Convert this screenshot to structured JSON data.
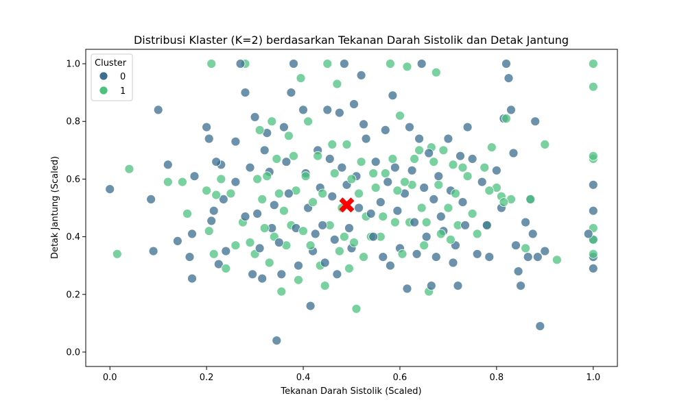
{
  "chart_data": {
    "type": "scatter",
    "title": "Distribusi Klaster (K=2) berdasarkan Tekanan Darah Sistolik dan Detak Jantung",
    "xlabel": "Tekanan Darah Sistolik (Scaled)",
    "ylabel": "Detak Jantung (Scaled)",
    "xlim": [
      -0.05,
      1.05
    ],
    "ylim": [
      -0.05,
      1.05
    ],
    "xticks": [
      "0.0",
      "0.2",
      "0.4",
      "0.6",
      "0.8",
      "1.0"
    ],
    "yticks": [
      "0.0",
      "0.2",
      "0.4",
      "0.6",
      "0.8",
      "1.0"
    ],
    "grid": false,
    "legend": {
      "title": "Cluster",
      "placement": "top-left",
      "entries": [
        "0",
        "1"
      ]
    },
    "colors": {
      "cluster_0": "#3b6e8f",
      "cluster_1": "#4cc27f",
      "centroid": "#ff0000"
    },
    "centroid": {
      "x": 0.49,
      "y": 0.51,
      "marker": "X"
    },
    "series": [
      {
        "name": "0",
        "points": [
          [
            0.0,
            0.565
          ],
          [
            0.085,
            0.53
          ],
          [
            0.09,
            0.35
          ],
          [
            0.1,
            0.84
          ],
          [
            0.12,
            0.65
          ],
          [
            0.14,
            0.385
          ],
          [
            0.165,
            0.33
          ],
          [
            0.17,
            0.255
          ],
          [
            0.17,
            0.41
          ],
          [
            0.175,
            0.61
          ],
          [
            0.2,
            0.78
          ],
          [
            0.205,
            0.74
          ],
          [
            0.21,
            0.455
          ],
          [
            0.215,
            0.49
          ],
          [
            0.22,
            0.66
          ],
          [
            0.225,
            0.305
          ],
          [
            0.23,
            0.65
          ],
          [
            0.235,
            0.53
          ],
          [
            0.24,
            0.35
          ],
          [
            0.26,
            0.59
          ],
          [
            0.26,
            0.73
          ],
          [
            0.27,
            1.0
          ],
          [
            0.28,
            0.47
          ],
          [
            0.28,
            0.9
          ],
          [
            0.29,
            0.64
          ],
          [
            0.295,
            0.27
          ],
          [
            0.3,
            0.815
          ],
          [
            0.305,
            0.48
          ],
          [
            0.31,
            0.36
          ],
          [
            0.315,
            0.255
          ],
          [
            0.32,
            0.7
          ],
          [
            0.325,
            0.76
          ],
          [
            0.33,
            0.625
          ],
          [
            0.335,
            0.43
          ],
          [
            0.34,
            0.51
          ],
          [
            0.345,
            0.04
          ],
          [
            0.35,
            0.38
          ],
          [
            0.355,
            0.27
          ],
          [
            0.36,
            0.78
          ],
          [
            0.365,
            0.66
          ],
          [
            0.37,
            0.55
          ],
          [
            0.375,
            0.9
          ],
          [
            0.38,
            1.0
          ],
          [
            0.385,
            0.43
          ],
          [
            0.39,
            0.3
          ],
          [
            0.4,
            0.84
          ],
          [
            0.405,
            0.62
          ],
          [
            0.41,
            0.5
          ],
          [
            0.415,
            0.16
          ],
          [
            0.42,
            0.35
          ],
          [
            0.425,
            0.41
          ],
          [
            0.43,
            0.7
          ],
          [
            0.435,
            0.57
          ],
          [
            0.44,
            0.44
          ],
          [
            0.445,
            0.31
          ],
          [
            0.45,
            0.84
          ],
          [
            0.455,
            0.67
          ],
          [
            0.46,
            0.54
          ],
          [
            0.465,
            0.39
          ],
          [
            0.47,
            0.27
          ],
          [
            0.475,
            0.83
          ],
          [
            0.48,
            0.64
          ],
          [
            0.485,
            1.0
          ],
          [
            0.49,
            0.58
          ],
          [
            0.495,
            0.43
          ],
          [
            0.5,
            0.36
          ],
          [
            0.505,
            0.86
          ],
          [
            0.51,
            0.61
          ],
          [
            0.515,
            0.5
          ],
          [
            0.52,
            0.96
          ],
          [
            0.525,
            0.79
          ],
          [
            0.53,
            0.74
          ],
          [
            0.54,
            0.48
          ],
          [
            0.545,
            0.4
          ],
          [
            0.55,
            0.66
          ],
          [
            0.56,
            0.52
          ],
          [
            0.565,
            0.33
          ],
          [
            0.57,
            0.77
          ],
          [
            0.575,
            0.59
          ],
          [
            0.58,
            0.3
          ],
          [
            0.585,
            0.89
          ],
          [
            0.59,
            0.64
          ],
          [
            0.595,
            0.49
          ],
          [
            0.6,
            0.36
          ],
          [
            0.61,
            0.55
          ],
          [
            0.615,
            0.22
          ],
          [
            0.62,
            0.78
          ],
          [
            0.625,
            0.63
          ],
          [
            0.63,
            0.45
          ],
          [
            0.635,
            0.34
          ],
          [
            0.64,
            0.74
          ],
          [
            0.645,
            1.0
          ],
          [
            0.65,
            0.57
          ],
          [
            0.655,
            0.4
          ],
          [
            0.66,
            0.69
          ],
          [
            0.665,
            0.23
          ],
          [
            0.67,
            0.53
          ],
          [
            0.675,
            0.33
          ],
          [
            0.68,
            0.61
          ],
          [
            0.685,
            0.47
          ],
          [
            0.69,
            0.42
          ],
          [
            0.7,
            0.74
          ],
          [
            0.705,
            0.56
          ],
          [
            0.71,
            0.31
          ],
          [
            0.715,
            0.37
          ],
          [
            0.72,
            0.23
          ],
          [
            0.725,
            0.68
          ],
          [
            0.73,
            0.52
          ],
          [
            0.735,
            0.44
          ],
          [
            0.74,
            0.78
          ],
          [
            0.75,
            0.67
          ],
          [
            0.76,
            0.34
          ],
          [
            0.77,
            0.59
          ],
          [
            0.78,
            0.44
          ],
          [
            0.785,
            0.33
          ],
          [
            0.8,
            0.63
          ],
          [
            0.81,
            0.5
          ],
          [
            0.815,
            0.81
          ],
          [
            0.82,
            1.0
          ],
          [
            0.825,
            0.95
          ],
          [
            0.83,
            0.84
          ],
          [
            0.835,
            0.69
          ],
          [
            0.84,
            0.37
          ],
          [
            0.845,
            0.28
          ],
          [
            0.85,
            0.23
          ],
          [
            0.86,
            0.45
          ],
          [
            0.865,
            0.33
          ],
          [
            0.87,
            0.53
          ],
          [
            0.875,
            0.41
          ],
          [
            0.88,
            0.8
          ],
          [
            0.885,
            0.33
          ],
          [
            0.89,
            0.09
          ],
          [
            0.9,
            0.35
          ],
          [
            0.99,
            0.41
          ],
          [
            1.0,
            0.58
          ],
          [
            1.0,
            0.49
          ],
          [
            1.0,
            0.33
          ],
          [
            1.0,
            0.29
          ],
          [
            1.0,
            0.39
          ]
        ]
      },
      {
        "name": "1",
        "points": [
          [
            0.015,
            0.34
          ],
          [
            0.04,
            0.635
          ],
          [
            0.12,
            0.59
          ],
          [
            0.15,
            0.59
          ],
          [
            0.16,
            0.48
          ],
          [
            0.2,
            0.56
          ],
          [
            0.205,
            0.42
          ],
          [
            0.21,
            1.0
          ],
          [
            0.215,
            0.34
          ],
          [
            0.22,
            0.545
          ],
          [
            0.23,
            0.6
          ],
          [
            0.24,
            0.29
          ],
          [
            0.25,
            0.55
          ],
          [
            0.26,
            0.37
          ],
          [
            0.275,
            0.45
          ],
          [
            0.28,
            1.0
          ],
          [
            0.29,
            0.38
          ],
          [
            0.3,
            0.34
          ],
          [
            0.305,
            0.6
          ],
          [
            0.31,
            0.77
          ],
          [
            0.315,
            0.53
          ],
          [
            0.32,
            0.43
          ],
          [
            0.325,
            0.61
          ],
          [
            0.33,
            0.31
          ],
          [
            0.335,
            0.8
          ],
          [
            0.34,
            0.4
          ],
          [
            0.345,
            0.67
          ],
          [
            0.35,
            0.55
          ],
          [
            0.355,
            0.21
          ],
          [
            0.36,
            0.49
          ],
          [
            0.365,
            0.37
          ],
          [
            0.37,
            0.75
          ],
          [
            0.375,
            0.44
          ],
          [
            0.38,
            0.68
          ],
          [
            0.385,
            0.56
          ],
          [
            0.39,
            0.25
          ],
          [
            0.395,
            0.95
          ],
          [
            0.4,
            0.42
          ],
          [
            0.405,
            0.61
          ],
          [
            0.41,
            0.8
          ],
          [
            0.415,
            0.37
          ],
          [
            0.42,
            0.52
          ],
          [
            0.43,
            0.68
          ],
          [
            0.435,
            0.3
          ],
          [
            0.44,
            0.55
          ],
          [
            0.445,
            0.23
          ],
          [
            0.45,
            1.0
          ],
          [
            0.455,
            0.44
          ],
          [
            0.46,
            0.72
          ],
          [
            0.465,
            0.62
          ],
          [
            0.47,
            0.93
          ],
          [
            0.475,
            0.35
          ],
          [
            0.48,
            0.5
          ],
          [
            0.485,
            0.4
          ],
          [
            0.49,
            0.72
          ],
          [
            0.495,
            0.29
          ],
          [
            0.5,
            0.6
          ],
          [
            0.505,
            0.38
          ],
          [
            0.51,
            0.15
          ],
          [
            0.515,
            0.55
          ],
          [
            0.52,
            0.66
          ],
          [
            0.525,
            0.33
          ],
          [
            0.53,
            0.47
          ],
          [
            0.54,
            0.4
          ],
          [
            0.545,
            0.62
          ],
          [
            0.55,
            0.57
          ],
          [
            0.56,
            0.4
          ],
          [
            0.565,
            0.47
          ],
          [
            0.57,
            0.62
          ],
          [
            0.58,
            1.0
          ],
          [
            0.585,
            0.67
          ],
          [
            0.59,
            0.45
          ],
          [
            0.595,
            0.56
          ],
          [
            0.6,
            0.82
          ],
          [
            0.605,
            0.34
          ],
          [
            0.61,
            0.59
          ],
          [
            0.615,
            0.99
          ],
          [
            0.62,
            0.45
          ],
          [
            0.625,
            0.58
          ],
          [
            0.63,
            0.67
          ],
          [
            0.64,
            0.7
          ],
          [
            0.645,
            0.5
          ],
          [
            0.65,
            0.37
          ],
          [
            0.655,
            0.45
          ],
          [
            0.66,
            0.21
          ],
          [
            0.665,
            0.71
          ],
          [
            0.67,
            0.66
          ],
          [
            0.675,
            0.97
          ],
          [
            0.68,
            0.58
          ],
          [
            0.685,
            0.41
          ],
          [
            0.69,
            0.7
          ],
          [
            0.7,
            0.5
          ],
          [
            0.705,
            0.39
          ],
          [
            0.71,
            0.65
          ],
          [
            0.715,
            0.55
          ],
          [
            0.72,
            0.44
          ],
          [
            0.73,
            0.64
          ],
          [
            0.74,
            0.61
          ],
          [
            0.75,
            0.48
          ],
          [
            0.76,
            0.41
          ],
          [
            0.775,
            0.64
          ],
          [
            0.78,
            0.44
          ],
          [
            0.785,
            0.56
          ],
          [
            0.79,
            0.71
          ],
          [
            0.8,
            0.57
          ],
          [
            0.81,
            0.54
          ],
          [
            0.815,
            0.52
          ],
          [
            0.82,
            0.81
          ],
          [
            0.83,
            0.53
          ],
          [
            0.86,
            0.36
          ],
          [
            0.87,
            0.53
          ],
          [
            0.9,
            0.72
          ],
          [
            0.925,
            0.32
          ],
          [
            1.0,
            1.0
          ],
          [
            1.0,
            0.92
          ],
          [
            1.0,
            0.68
          ],
          [
            1.0,
            0.67
          ],
          [
            1.0,
            0.43
          ],
          [
            1.0,
            0.39
          ],
          [
            1.0,
            0.34
          ]
        ]
      }
    ]
  }
}
